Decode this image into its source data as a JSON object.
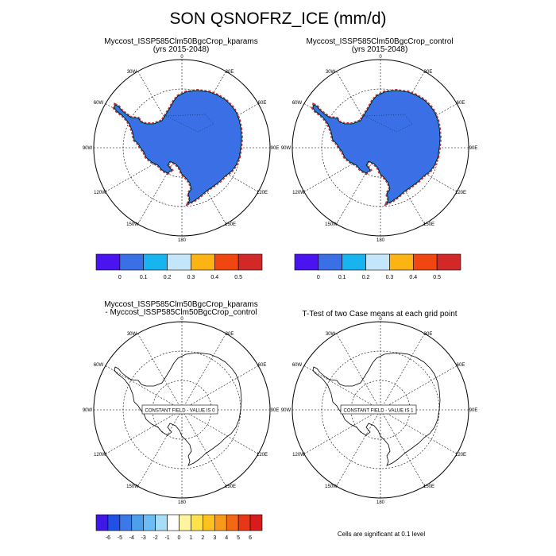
{
  "title": "SON QSNOFRZ_ICE (mm/d)",
  "colors": {
    "ice": "#3a6fe5",
    "coast": "#000000"
  },
  "panels": [
    {
      "id": "p1",
      "title_line1": "Myccost_ISSP585Clm50BgcCrop_kparams",
      "title_line2": "(yrs 2015-2048)",
      "filled": true
    },
    {
      "id": "p2",
      "title_line1": "Myccost_ISSP585Clm50BgcCrop_control",
      "title_line2": "(yrs 2015-2048)",
      "filled": true
    },
    {
      "id": "p3",
      "title_line1": "Myccost_ISSP585Clm50BgcCrop_kparams",
      "title_line2": "- Myccost_ISSP585Clm50BgcCrop_control",
      "filled": false,
      "constant_label": "CONSTANT FIELD - VALUE IS 0"
    },
    {
      "id": "p4",
      "title_line1": "T-Test of two Case means at each grid point",
      "title_line2": "",
      "filled": false,
      "constant_label": "CONSTANT FIELD - VALUE IS 1"
    }
  ],
  "map_labels": {
    "lon_top": "0",
    "lon_30e": "30E",
    "lon_60e": "60E",
    "lon_90e": "90E",
    "lon_120e": "120E",
    "lon_150e": "150E",
    "lon_180": "180",
    "lon_150w": "150W",
    "lon_120w": "120W",
    "lon_90w": "90W",
    "lon_60w": "60W",
    "lon_30w": "30W"
  },
  "colorbar_top": {
    "colors": [
      "#4a14f0",
      "#3a6fe5",
      "#18b4f0",
      "#c3e6fa",
      "#fcb414",
      "#f0460f",
      "#d22828"
    ],
    "labels": [
      "0",
      "0.1",
      "0.2",
      "0.3",
      "0.4",
      "0.5"
    ]
  },
  "colorbar_bottom": {
    "colors": [
      "#4018e6",
      "#2050e6",
      "#3c78e6",
      "#4d9fee",
      "#6dbcf4",
      "#a8ddf8",
      "#ffffff",
      "#fff5a0",
      "#ffe14a",
      "#fcc21e",
      "#f89a19",
      "#f26817",
      "#ea3618",
      "#d81c1c"
    ],
    "labels": [
      "-6",
      "-5",
      "-4",
      "-3",
      "-2",
      "-1",
      "0",
      "1",
      "2",
      "3",
      "4",
      "5",
      "6"
    ]
  },
  "footnote": "Cells are significant at 0.1 level"
}
